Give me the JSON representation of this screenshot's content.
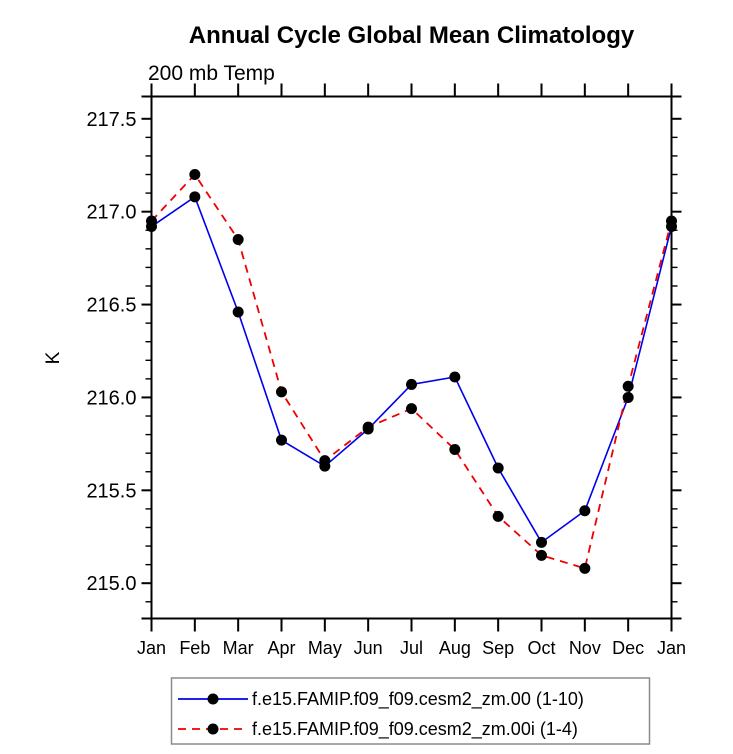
{
  "chart": {
    "title": "Annual Cycle Global Mean Climatology",
    "subtitle": "200 mb Temp",
    "ylabel": "K"
  },
  "chart_data": {
    "type": "line",
    "title": "Annual Cycle Global Mean Climatology",
    "subtitle": "200 mb Temp",
    "xlabel": "",
    "ylabel": "K",
    "categories": [
      "Jan",
      "Feb",
      "Mar",
      "Apr",
      "May",
      "Jun",
      "Jul",
      "Aug",
      "Sep",
      "Oct",
      "Nov",
      "Dec",
      "Jan"
    ],
    "series": [
      {
        "name": "f.e15.FAMIP.f09_f09.cesm2_zm.00 (1-10)",
        "color": "#0000ee",
        "line_style": "solid",
        "marker": "circle",
        "marker_color": "#000000",
        "values": [
          216.92,
          217.08,
          216.46,
          215.77,
          215.63,
          215.83,
          216.07,
          216.11,
          215.62,
          215.22,
          215.39,
          216.0,
          216.92
        ]
      },
      {
        "name": "f.e15.FAMIP.f09_f09.cesm2_zm.00i (1-4)",
        "color": "#ee0000",
        "line_style": "dashed",
        "marker": "circle",
        "marker_color": "#000000",
        "values": [
          216.95,
          217.2,
          216.85,
          216.03,
          215.66,
          215.84,
          215.94,
          215.72,
          215.36,
          215.15,
          215.08,
          216.06,
          216.95
        ]
      }
    ],
    "y_major_ticks": [
      215.0,
      215.5,
      216.0,
      216.5,
      217.0,
      217.5
    ],
    "y_tick_labels": [
      "215.0",
      "215.5",
      "216.0",
      "216.5",
      "217.0",
      "217.5"
    ],
    "y_minor_step": 0.1,
    "ylim": [
      214.81,
      217.62
    ],
    "grid": false,
    "legend_position": "bottom",
    "axis_color": "#000000",
    "legend_border_color": "#8c8c8c"
  }
}
